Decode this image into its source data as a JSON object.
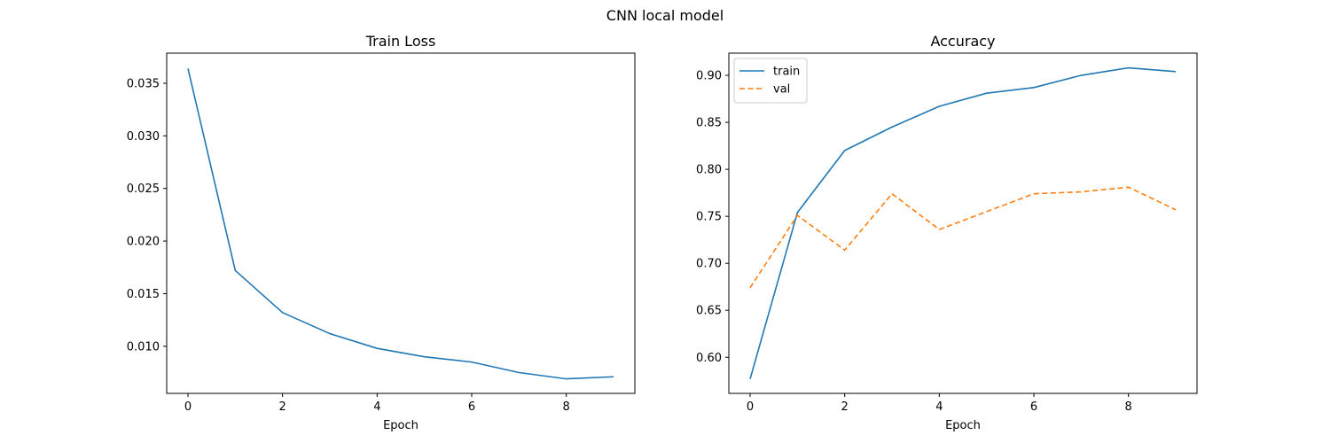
{
  "figure_title": "CNN local model",
  "chart_data": [
    {
      "type": "line",
      "title": "Train Loss",
      "xlabel": "Epoch",
      "ylabel": "",
      "x": [
        0,
        1,
        2,
        3,
        4,
        5,
        6,
        7,
        8,
        9
      ],
      "xlim": [
        -0.45,
        9.45
      ],
      "ylim": [
        0.00552,
        0.03786
      ],
      "xticks": [
        0,
        2,
        4,
        6,
        8
      ],
      "yticks": [
        0.01,
        0.015,
        0.02,
        0.025,
        0.03,
        0.035
      ],
      "ytick_labels": [
        "0.010",
        "0.015",
        "0.020",
        "0.025",
        "0.030",
        "0.035"
      ],
      "grid": false,
      "series": [
        {
          "values": [
            0.0364,
            0.0172,
            0.0132,
            0.0112,
            0.0098,
            0.009,
            0.0085,
            0.0075,
            0.0069,
            0.0071
          ],
          "color": "#1f77b4",
          "dash": "solid"
        }
      ]
    },
    {
      "type": "line",
      "title": "Accuracy",
      "xlabel": "Epoch",
      "ylabel": "",
      "x": [
        0,
        1,
        2,
        3,
        4,
        5,
        6,
        7,
        8,
        9
      ],
      "xlim": [
        -0.45,
        9.45
      ],
      "ylim": [
        0.5616,
        0.9236
      ],
      "xticks": [
        0,
        2,
        4,
        6,
        8
      ],
      "yticks": [
        0.6,
        0.65,
        0.7,
        0.75,
        0.8,
        0.85,
        0.9
      ],
      "ytick_labels": [
        "0.60",
        "0.65",
        "0.70",
        "0.75",
        "0.80",
        "0.85",
        "0.90"
      ],
      "grid": false,
      "legend": "top-left",
      "series": [
        {
          "name": "train",
          "values": [
            0.577,
            0.754,
            0.82,
            0.845,
            0.867,
            0.881,
            0.887,
            0.9,
            0.908,
            0.904
          ],
          "color": "#1f77b4",
          "dash": "solid"
        },
        {
          "name": "val",
          "values": [
            0.674,
            0.751,
            0.714,
            0.774,
            0.736,
            0.755,
            0.774,
            0.776,
            0.781,
            0.757
          ],
          "color": "#ff7f0e",
          "dash": "dashed"
        }
      ]
    }
  ]
}
